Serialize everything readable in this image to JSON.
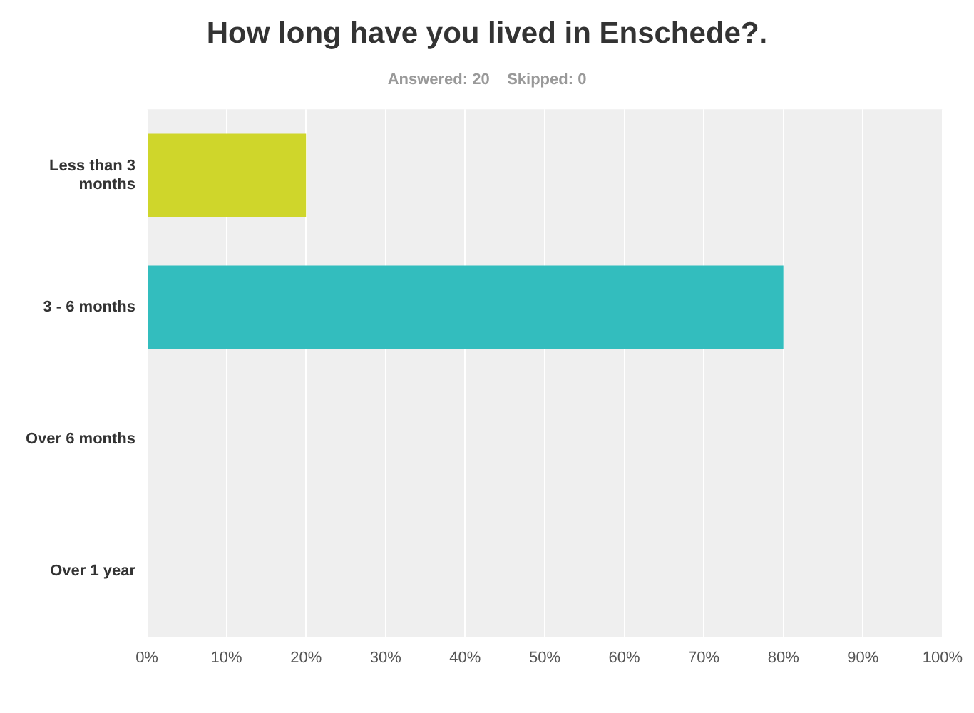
{
  "chart_data": {
    "type": "bar",
    "orientation": "horizontal",
    "title": "How long have you lived in Enschede?.",
    "subtitle": "Answered: 20    Skipped: 0",
    "categories": [
      "Less than 3 months",
      "3 - 6 months",
      "Over 6 months",
      "Over 1 year"
    ],
    "values": [
      20,
      80,
      0,
      0
    ],
    "colors": [
      "#cfd62b",
      "#33bdbe",
      "#f0794a",
      "#7f7fc0"
    ],
    "xlim": [
      0,
      100
    ],
    "xticks": [
      {
        "value": 0,
        "label": "0%"
      },
      {
        "value": 10,
        "label": "10%"
      },
      {
        "value": 20,
        "label": "20%"
      },
      {
        "value": 30,
        "label": "30%"
      },
      {
        "value": 40,
        "label": "40%"
      },
      {
        "value": 50,
        "label": "50%"
      },
      {
        "value": 60,
        "label": "60%"
      },
      {
        "value": 70,
        "label": "70%"
      },
      {
        "value": 80,
        "label": "80%"
      },
      {
        "value": 90,
        "label": "90%"
      },
      {
        "value": 100,
        "label": "100%"
      }
    ],
    "grid": "x",
    "legend": false
  }
}
